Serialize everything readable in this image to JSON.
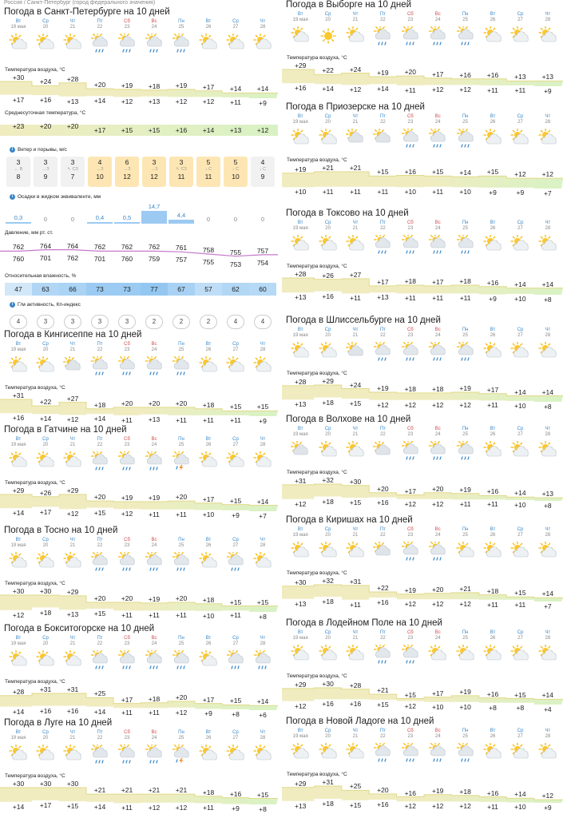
{
  "breadcrumb": "Россия / Санкт-Петербург (город федерального значения)",
  "colors": {
    "accent": "#3a87c7",
    "weekend": "#d24b4b",
    "band_warm": "#f0ecc0",
    "band_cool": "#d8f2c4",
    "pressure_line": "#c678c9",
    "humidity": "#c9e2f7",
    "precip_bar": "#9ccaf2",
    "wind_strong": "#fde6b4",
    "wind_light": "#f1f1f1"
  },
  "days": [
    {
      "dow": "Вт",
      "date": "19 мая",
      "weekend": false
    },
    {
      "dow": "Ср",
      "date": "20",
      "weekend": false
    },
    {
      "dow": "Чт",
      "date": "21",
      "weekend": false
    },
    {
      "dow": "Пт",
      "date": "22",
      "weekend": false
    },
    {
      "dow": "Сб",
      "date": "23",
      "weekend": true
    },
    {
      "dow": "Вс",
      "date": "24",
      "weekend": true
    },
    {
      "dow": "Пн",
      "date": "25",
      "weekend": false
    },
    {
      "dow": "Вт",
      "date": "26",
      "weekend": false
    },
    {
      "dow": "Ср",
      "date": "27",
      "weekend": false
    },
    {
      "dow": "Чт",
      "date": "28",
      "weekend": false
    }
  ],
  "temp_label": "Температура воздуха, °C",
  "spb": {
    "title": "Погода в Санкт-Петербурге на 10 дней",
    "icons": [
      "sun-cloud-icon",
      "sun-cloud-icon",
      "sun-cloud-icon",
      "rain-icon",
      "rain-icon",
      "rain-icon",
      "rain-icon",
      "sun-cloud-icon",
      "sun-cloud-icon",
      "sun-cloud-icon"
    ],
    "high": [
      "+30",
      "+24",
      "+28",
      "+20",
      "+19",
      "+18",
      "+19",
      "+17",
      "+14",
      "+14"
    ],
    "low": [
      "+17",
      "+16",
      "+13",
      "+14",
      "+12",
      "+13",
      "+12",
      "+12",
      "+11",
      "+9"
    ],
    "avg_label": "Среднесуточная температура, °C",
    "avg": [
      "+23",
      "+20",
      "+20",
      "+17",
      "+15",
      "+15",
      "+16",
      "+14",
      "+13",
      "+12"
    ],
    "wind_label": "Ветер и порывы, м/с",
    "wind": [
      {
        "speed": "3",
        "dir": "← В",
        "gust": "8",
        "strong": false
      },
      {
        "speed": "3",
        "dir": "→З",
        "gust": "9",
        "strong": false
      },
      {
        "speed": "3",
        "dir": "↖ СЗ",
        "gust": "7",
        "strong": false
      },
      {
        "speed": "4",
        "dir": "→З",
        "gust": "10",
        "strong": true
      },
      {
        "speed": "6",
        "dir": "→З",
        "gust": "12",
        "strong": true
      },
      {
        "speed": "3",
        "dir": "→З",
        "gust": "12",
        "strong": true
      },
      {
        "speed": "3",
        "dir": "↖ СЗ",
        "gust": "11",
        "strong": true
      },
      {
        "speed": "5",
        "dir": "↓ С",
        "gust": "11",
        "strong": true
      },
      {
        "speed": "5",
        "dir": "↓ С",
        "gust": "10",
        "strong": true
      },
      {
        "speed": "4",
        "dir": "↓ С",
        "gust": "9",
        "strong": false
      }
    ],
    "precip_label": "Осадки в жидком эквиваленте, мм",
    "precip": [
      "0,3",
      "0",
      "0",
      "0,4",
      "0,5",
      "14,7",
      "4,4",
      "0",
      "0",
      "0"
    ],
    "precip_mm": [
      0.3,
      0,
      0,
      0.4,
      0.5,
      14.7,
      4.4,
      0,
      0,
      0
    ],
    "pressure_label": "Давление, мм рт. ст.",
    "pressure_day": [
      "762",
      "764",
      "764",
      "762",
      "762",
      "762",
      "761",
      "758",
      "755",
      "757"
    ],
    "pressure_night": [
      "760",
      "701",
      "762",
      "701",
      "760",
      "759",
      "757",
      "755",
      "753",
      "754"
    ],
    "humidity_label": "Относительная влажность, %",
    "humidity": [
      "47",
      "63",
      "66",
      "73",
      "73",
      "77",
      "67",
      "57",
      "62",
      "60"
    ],
    "kp_label": "Г/м активность, Кп-индекс",
    "kp": [
      "4",
      "3",
      "3",
      "3",
      "3",
      "2",
      "2",
      "2",
      "4",
      "4"
    ]
  },
  "cities_left": [
    {
      "title": "Погода в Кингисеппе на 10 дней",
      "icons": [
        "sun-cloud-icon",
        "sun-cloud-icon",
        "cloud-icon",
        "rain-icon",
        "rain-icon",
        "rain-icon",
        "rain-icon",
        "sun-cloud-icon",
        "sun-cloud-icon",
        "sun-cloud-icon"
      ],
      "high": [
        "+31",
        "+22",
        "+27",
        "+18",
        "+20",
        "+20",
        "+20",
        "+18",
        "+15",
        "+15"
      ],
      "low": [
        "+16",
        "+14",
        "+12",
        "+14",
        "+11",
        "+13",
        "+11",
        "+11",
        "+11",
        "+9"
      ]
    },
    {
      "title": "Погода в Гатчине на 10 дней",
      "icons": [
        "sun-cloud-icon",
        "sun-cloud-icon",
        "sun-cloud-icon",
        "rain-icon",
        "rain-icon",
        "rain-icon",
        "storm-icon",
        "sun-cloud-icon",
        "sun-cloud-icon",
        "sun-cloud-icon"
      ],
      "high": [
        "+29",
        "+26",
        "+29",
        "+20",
        "+19",
        "+19",
        "+20",
        "+17",
        "+15",
        "+14"
      ],
      "low": [
        "+14",
        "+17",
        "+12",
        "+15",
        "+12",
        "+11",
        "+11",
        "+10",
        "+9",
        "+7"
      ]
    },
    {
      "title": "Погода в Тосно на 10 дней",
      "icons": [
        "sun-cloud-icon",
        "sun-cloud-icon",
        "sun-cloud-icon",
        "rain-icon",
        "rain-icon",
        "rain-icon",
        "rain-icon",
        "sun-cloud-icon",
        "rain-icon",
        "sun-cloud-icon"
      ],
      "high": [
        "+30",
        "+30",
        "+29",
        "+20",
        "+20",
        "+19",
        "+20",
        "+18",
        "+15",
        "+15"
      ],
      "low": [
        "+12",
        "+18",
        "+13",
        "+15",
        "+11",
        "+11",
        "+11",
        "+10",
        "+11",
        "+8"
      ]
    },
    {
      "title": "Погода в Бокситогорске на 10 дней",
      "icons": [
        "sun-cloud-icon",
        "sun-cloud-icon",
        "sun-cloud-icon",
        "rain-icon",
        "rain-icon",
        "rain-icon",
        "rain-icon",
        "sun-cloud-icon",
        "rain-icon",
        "rain-icon"
      ],
      "high": [
        "+28",
        "+31",
        "+31",
        "+25",
        "+17",
        "+18",
        "+20",
        "+17",
        "+15",
        "+14"
      ],
      "low": [
        "+14",
        "+16",
        "+16",
        "+14",
        "+11",
        "+11",
        "+12",
        "+9",
        "+8",
        "+6"
      ]
    },
    {
      "title": "Погода в Луге на 10 дней",
      "icons": [
        "sun-cloud-icon",
        "sun-cloud-icon",
        "sun-cloud-icon",
        "rain-icon",
        "rain-icon",
        "rain-icon",
        "storm-icon",
        "sun-cloud-icon",
        "sun-cloud-icon",
        "sun-cloud-icon"
      ],
      "high": [
        "+30",
        "+30",
        "+30",
        "+21",
        "+21",
        "+21",
        "+21",
        "+18",
        "+16",
        "+15"
      ],
      "low": [
        "+14",
        "+17",
        "+15",
        "+14",
        "+11",
        "+12",
        "+12",
        "+11",
        "+9",
        "+8"
      ]
    }
  ],
  "cities_right": [
    {
      "title": "Погода в Выборге на 10 дней",
      "icons": [
        "sun-cloud-icon",
        "sun-icon",
        "sun-cloud-icon",
        "rain-icon",
        "rain-icon",
        "rain-icon",
        "rain-icon",
        "sun-cloud-icon",
        "sun-cloud-icon",
        "sun-cloud-icon"
      ],
      "high": [
        "+29",
        "+22",
        "+24",
        "+19",
        "+20",
        "+17",
        "+16",
        "+16",
        "+13",
        "+13"
      ],
      "low": [
        "+16",
        "+14",
        "+12",
        "+14",
        "+11",
        "+12",
        "+12",
        "+11",
        "+11",
        "+9"
      ]
    },
    {
      "title": "Погода в Приозерске на 10 дней",
      "icons": [
        "sun-cloud-icon",
        "sun-cloud-icon",
        "cloud-icon",
        "cloud-icon",
        "rain-icon",
        "rain-icon",
        "rain-icon",
        "sun-cloud-icon",
        "sun-cloud-icon",
        "sun-cloud-icon"
      ],
      "high": [
        "+19",
        "+21",
        "+21",
        "+15",
        "+16",
        "+15",
        "+14",
        "+15",
        "+12",
        "+12"
      ],
      "low": [
        "+10",
        "+11",
        "+11",
        "+11",
        "+10",
        "+11",
        "+10",
        "+9",
        "+9",
        "+7"
      ]
    },
    {
      "title": "Погода в Токсово на 10 дней",
      "icons": [
        "sun-cloud-icon",
        "sun-cloud-icon",
        "sun-cloud-icon",
        "rain-icon",
        "rain-icon",
        "rain-icon",
        "rain-icon",
        "sun-cloud-icon",
        "sun-cloud-icon",
        "sun-cloud-icon"
      ],
      "high": [
        "+28",
        "+26",
        "+27",
        "+17",
        "+18",
        "+17",
        "+18",
        "+16",
        "+14",
        "+14"
      ],
      "low": [
        "+13",
        "+16",
        "+11",
        "+13",
        "+11",
        "+11",
        "+11",
        "+9",
        "+10",
        "+8"
      ]
    },
    {
      "title": "Погода в Шлиссельбурге на 10 дней",
      "icons": [
        "sun-cloud-icon",
        "sun-cloud-icon",
        "cloud-icon",
        "rain-icon",
        "rain-icon",
        "rain-icon",
        "rain-icon",
        "sun-cloud-icon",
        "sun-cloud-icon",
        "sun-cloud-icon"
      ],
      "high": [
        "+28",
        "+29",
        "+24",
        "+19",
        "+18",
        "+18",
        "+19",
        "+17",
        "+14",
        "+14"
      ],
      "low": [
        "+13",
        "+18",
        "+15",
        "+12",
        "+12",
        "+12",
        "+12",
        "+11",
        "+10",
        "+8"
      ]
    },
    {
      "title": "Погода в Волхове на 10 дней",
      "icons": [
        "cloud-icon",
        "sun-cloud-icon",
        "sun-cloud-icon",
        "cloud-icon",
        "rain-icon",
        "rain-icon",
        "rain-icon",
        "sun-cloud-icon",
        "sun-cloud-icon",
        "sun-cloud-icon"
      ],
      "high": [
        "+31",
        "+32",
        "+30",
        "+20",
        "+17",
        "+20",
        "+19",
        "+16",
        "+14",
        "+13"
      ],
      "low": [
        "+12",
        "+18",
        "+15",
        "+16",
        "+12",
        "+12",
        "+11",
        "+11",
        "+10",
        "+8"
      ]
    },
    {
      "title": "Погода в Киришах на 10 дней",
      "icons": [
        "sun-cloud-icon",
        "sun-cloud-icon",
        "sun-cloud-icon",
        "cloud-icon",
        "rain-icon",
        "rain-icon",
        "sun-cloud-icon",
        "sun-cloud-icon",
        "sun-cloud-icon",
        "sun-cloud-icon"
      ],
      "high": [
        "+30",
        "+32",
        "+31",
        "+22",
        "+19",
        "+20",
        "+21",
        "+18",
        "+15",
        "+14"
      ],
      "low": [
        "+13",
        "+18",
        "+11",
        "+16",
        "+12",
        "+12",
        "+12",
        "+11",
        "+11",
        "+7"
      ]
    },
    {
      "title": "Погода в Лодейном Поле на 10 дней",
      "icons": [
        "sun-cloud-icon",
        "sun-cloud-icon",
        "sun-cloud-icon",
        "rain-icon",
        "rain-icon",
        "sun-cloud-icon",
        "sun-cloud-icon",
        "sun-cloud-icon",
        "sun-cloud-icon",
        "sun-cloud-icon"
      ],
      "high": [
        "+29",
        "+30",
        "+28",
        "+21",
        "+15",
        "+17",
        "+19",
        "+16",
        "+15",
        "+14"
      ],
      "low": [
        "+12",
        "+16",
        "+16",
        "+15",
        "+12",
        "+10",
        "+10",
        "+8",
        "+8",
        "+4"
      ]
    },
    {
      "title": "Погода в Новой Ладоге на 10 дней",
      "icons": [
        "sun-cloud-icon",
        "sun-cloud-icon",
        "sun-cloud-icon",
        "rain-icon",
        "rain-icon",
        "rain-icon",
        "rain-icon",
        "sun-cloud-icon",
        "sun-cloud-icon",
        "sun-cloud-icon"
      ],
      "high": [
        "+29",
        "+31",
        "+25",
        "+20",
        "+16",
        "+19",
        "+18",
        "+16",
        "+14",
        "+12"
      ],
      "low": [
        "+13",
        "+18",
        "+15",
        "+16",
        "+12",
        "+12",
        "+12",
        "+11",
        "+10",
        "+9"
      ]
    }
  ]
}
